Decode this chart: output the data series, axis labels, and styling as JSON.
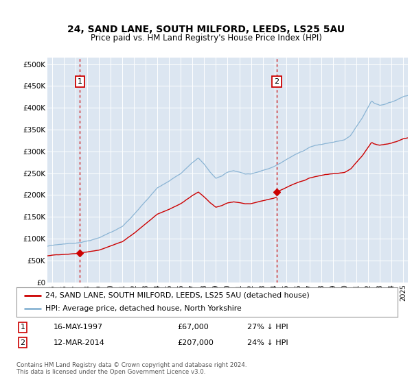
{
  "title1": "24, SAND LANE, SOUTH MILFORD, LEEDS, LS25 5AU",
  "title2": "Price paid vs. HM Land Registry's House Price Index (HPI)",
  "ylabel_ticks": [
    "£0",
    "£50K",
    "£100K",
    "£150K",
    "£200K",
    "£250K",
    "£300K",
    "£350K",
    "£400K",
    "£450K",
    "£500K"
  ],
  "ytick_values": [
    0,
    50000,
    100000,
    150000,
    200000,
    250000,
    300000,
    350000,
    400000,
    450000,
    500000
  ],
  "ylim": [
    0,
    515000
  ],
  "xlim_start": 1994.6,
  "xlim_end": 2025.4,
  "xtick_years": [
    1995,
    1996,
    1997,
    1998,
    1999,
    2000,
    2001,
    2002,
    2003,
    2004,
    2005,
    2006,
    2007,
    2008,
    2009,
    2010,
    2011,
    2012,
    2013,
    2014,
    2015,
    2016,
    2017,
    2018,
    2019,
    2020,
    2021,
    2022,
    2023,
    2024,
    2025
  ],
  "bg_color": "#dce6f1",
  "grid_color": "#ffffff",
  "hpi_color": "#8ab4d4",
  "price_color": "#cc0000",
  "sale1_year": 1997.37,
  "sale1_price": 67000,
  "sale2_year": 2014.19,
  "sale2_price": 207000,
  "legend_label1": "24, SAND LANE, SOUTH MILFORD, LEEDS, LS25 5AU (detached house)",
  "legend_label2": "HPI: Average price, detached house, North Yorkshire",
  "annotation1_label": "1",
  "annotation2_label": "2",
  "table_row1": [
    "1",
    "16-MAY-1997",
    "£67,000",
    "27% ↓ HPI"
  ],
  "table_row2": [
    "2",
    "12-MAR-2014",
    "£207,000",
    "24% ↓ HPI"
  ],
  "footer": "Contains HM Land Registry data © Crown copyright and database right 2024.\nThis data is licensed under the Open Government Licence v3.0.",
  "hpi_segments": [
    [
      1994.5,
      82000
    ],
    [
      1995.0,
      85000
    ],
    [
      1996.0,
      88000
    ],
    [
      1997.0,
      90000
    ],
    [
      1998.0,
      95000
    ],
    [
      1999.0,
      102000
    ],
    [
      2000.0,
      115000
    ],
    [
      2001.0,
      128000
    ],
    [
      2002.0,
      155000
    ],
    [
      2003.0,
      185000
    ],
    [
      2004.0,
      215000
    ],
    [
      2005.0,
      230000
    ],
    [
      2006.0,
      248000
    ],
    [
      2007.0,
      275000
    ],
    [
      2007.5,
      285000
    ],
    [
      2008.0,
      270000
    ],
    [
      2008.5,
      252000
    ],
    [
      2009.0,
      238000
    ],
    [
      2009.5,
      243000
    ],
    [
      2010.0,
      252000
    ],
    [
      2010.5,
      255000
    ],
    [
      2011.0,
      252000
    ],
    [
      2011.5,
      248000
    ],
    [
      2012.0,
      248000
    ],
    [
      2012.5,
      252000
    ],
    [
      2013.0,
      256000
    ],
    [
      2013.5,
      260000
    ],
    [
      2014.0,
      265000
    ],
    [
      2014.5,
      272000
    ],
    [
      2015.0,
      280000
    ],
    [
      2015.5,
      288000
    ],
    [
      2016.0,
      295000
    ],
    [
      2016.5,
      300000
    ],
    [
      2017.0,
      308000
    ],
    [
      2017.5,
      312000
    ],
    [
      2018.0,
      315000
    ],
    [
      2018.5,
      318000
    ],
    [
      2019.0,
      320000
    ],
    [
      2019.5,
      322000
    ],
    [
      2020.0,
      325000
    ],
    [
      2020.5,
      335000
    ],
    [
      2021.0,
      355000
    ],
    [
      2021.5,
      375000
    ],
    [
      2022.0,
      400000
    ],
    [
      2022.3,
      415000
    ],
    [
      2022.5,
      410000
    ],
    [
      2023.0,
      405000
    ],
    [
      2023.5,
      408000
    ],
    [
      2024.0,
      412000
    ],
    [
      2024.5,
      418000
    ],
    [
      2025.0,
      425000
    ],
    [
      2025.4,
      428000
    ]
  ]
}
